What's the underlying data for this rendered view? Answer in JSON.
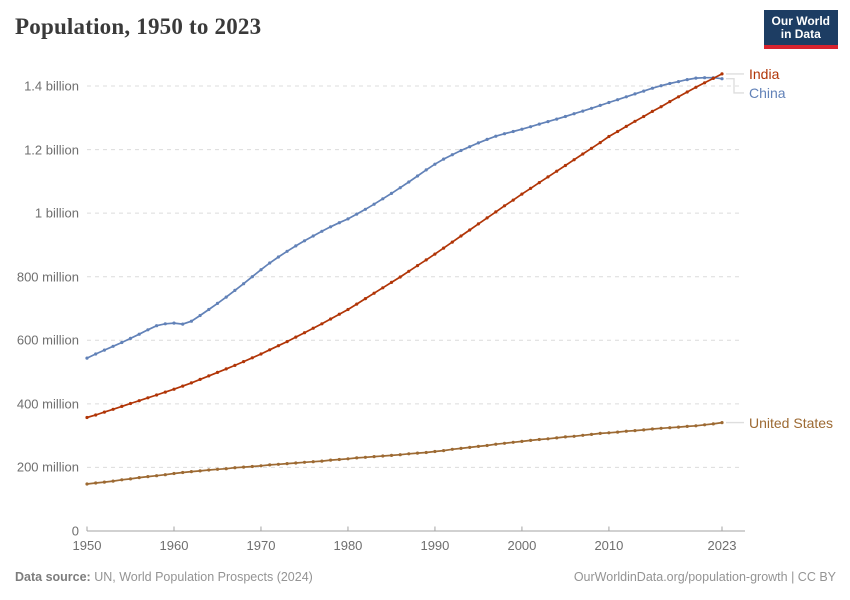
{
  "header": {
    "title": "Population, 1950 to 2023",
    "logo": {
      "line1": "Our World",
      "line2": "in Data",
      "bg_color": "#1d3d63",
      "accent_color": "#d8232e"
    }
  },
  "footer": {
    "source_label": "Data source:",
    "source_text": " UN, World Population Prospects (2024)",
    "right_text": "OurWorldinData.org/population-growth | CC BY"
  },
  "chart_data": {
    "type": "line",
    "title": "Population, 1950 to 2023",
    "xlabel": "",
    "ylabel": "Population",
    "units": "millions",
    "grid": "horizontal dashed",
    "legend_position": "end-of-line labels",
    "xlim": [
      1950,
      2023
    ],
    "ylim": [
      0,
      1450
    ],
    "x_ticks": [
      1950,
      1960,
      1970,
      1980,
      1990,
      2000,
      2010,
      2023
    ],
    "y_ticks": [
      {
        "value": 0,
        "label": "0"
      },
      {
        "value": 200,
        "label": "200 million"
      },
      {
        "value": 400,
        "label": "400 million"
      },
      {
        "value": 600,
        "label": "600 million"
      },
      {
        "value": 800,
        "label": "800 million"
      },
      {
        "value": 1000,
        "label": "1 billion"
      },
      {
        "value": 1200,
        "label": "1.2 billion"
      },
      {
        "value": 1400,
        "label": "1.4 billion"
      }
    ],
    "years": [
      1950,
      1951,
      1952,
      1953,
      1954,
      1955,
      1956,
      1957,
      1958,
      1959,
      1960,
      1961,
      1962,
      1963,
      1964,
      1965,
      1966,
      1967,
      1968,
      1969,
      1970,
      1971,
      1972,
      1973,
      1974,
      1975,
      1976,
      1977,
      1978,
      1979,
      1980,
      1981,
      1982,
      1983,
      1984,
      1985,
      1986,
      1987,
      1988,
      1989,
      1990,
      1991,
      1992,
      1993,
      1994,
      1995,
      1996,
      1997,
      1998,
      1999,
      2000,
      2001,
      2002,
      2003,
      2004,
      2005,
      2006,
      2007,
      2008,
      2009,
      2010,
      2011,
      2012,
      2013,
      2014,
      2015,
      2016,
      2017,
      2018,
      2019,
      2020,
      2021,
      2022,
      2023
    ],
    "series": [
      {
        "name": "India",
        "color": "#b13507",
        "values": [
          357,
          365,
          374,
          383,
          392,
          401,
          410,
          419,
          428,
          437,
          446,
          456,
          466,
          477,
          488,
          499,
          510,
          521,
          533,
          545,
          557,
          570,
          583,
          596,
          610,
          624,
          638,
          652,
          667,
          682,
          697,
          714,
          731,
          748,
          765,
          782,
          799,
          817,
          835,
          853,
          871,
          890,
          909,
          928,
          947,
          966,
          985,
          1004,
          1023,
          1041,
          1060,
          1078,
          1096,
          1114,
          1132,
          1150,
          1168,
          1186,
          1204,
          1222,
          1241,
          1257,
          1273,
          1289,
          1304,
          1320,
          1335,
          1351,
          1366,
          1381,
          1396,
          1410,
          1424,
          1438
        ]
      },
      {
        "name": "China",
        "color": "#6282b8",
        "values": [
          544,
          557,
          569,
          581,
          593,
          606,
          619,
          633,
          646,
          652,
          654,
          651,
          660,
          678,
          697,
          716,
          736,
          757,
          778,
          800,
          822,
          843,
          862,
          880,
          897,
          913,
          928,
          943,
          957,
          970,
          982,
          997,
          1012,
          1028,
          1045,
          1062,
          1080,
          1098,
          1117,
          1136,
          1154,
          1170,
          1184,
          1197,
          1209,
          1221,
          1232,
          1242,
          1250,
          1257,
          1264,
          1272,
          1280,
          1288,
          1296,
          1304,
          1313,
          1321,
          1330,
          1339,
          1348,
          1357,
          1366,
          1375,
          1384,
          1393,
          1401,
          1408,
          1414,
          1420,
          1425,
          1426,
          1426,
          1423
        ]
      },
      {
        "name": "United States",
        "color": "#9d6a33",
        "values": [
          148,
          151,
          154,
          157,
          161,
          164,
          168,
          171,
          174,
          177,
          181,
          184,
          187,
          189,
          192,
          194,
          196,
          199,
          201,
          203,
          205,
          208,
          210,
          212,
          214,
          216,
          218,
          220,
          223,
          225,
          227,
          230,
          232,
          234,
          236,
          238,
          240,
          243,
          245,
          247,
          250,
          253,
          257,
          260,
          263,
          266,
          269,
          273,
          276,
          279,
          282,
          285,
          288,
          290,
          293,
          296,
          298,
          301,
          304,
          307,
          309,
          311,
          314,
          316,
          318,
          321,
          323,
          325,
          327,
          329,
          331,
          334,
          337,
          341
        ]
      }
    ]
  }
}
